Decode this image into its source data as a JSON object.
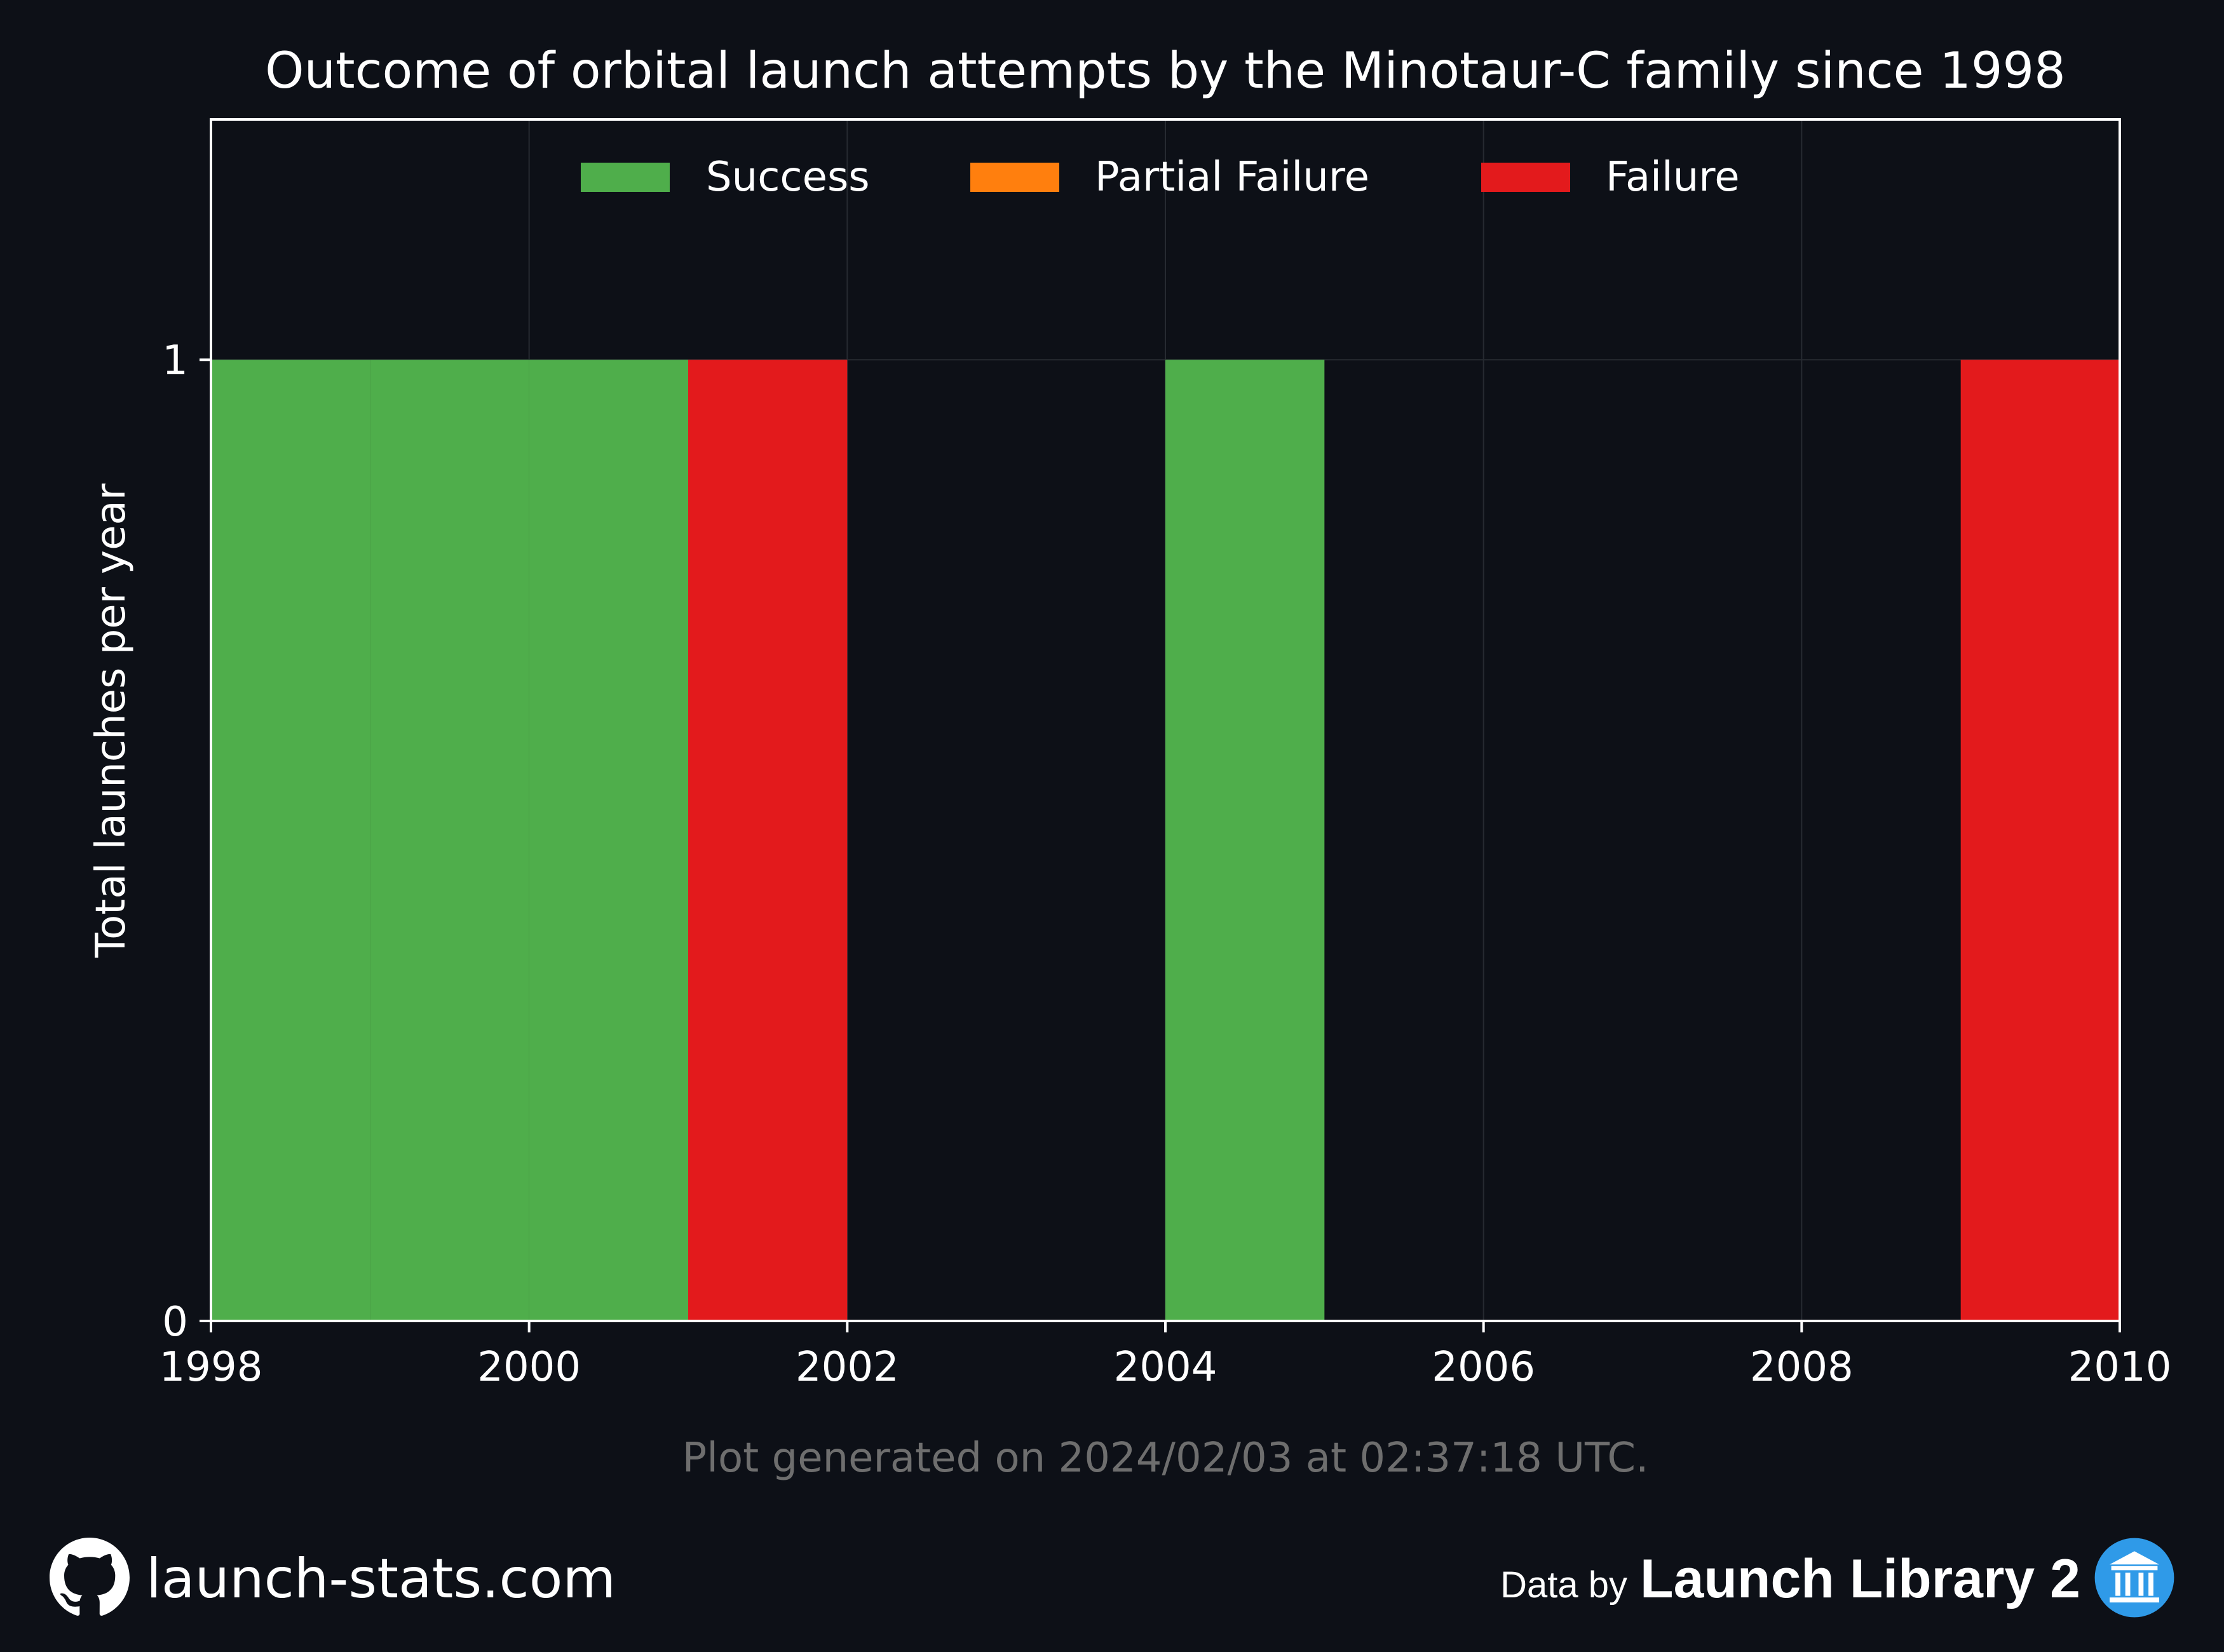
{
  "chart_data": {
    "type": "bar",
    "title": "Outcome of orbital launch attempts by the Minotaur-C family since 1998",
    "xlabel": "",
    "ylabel": "Total launches per year",
    "x": [
      1998,
      1999,
      2000,
      2001,
      2002,
      2003,
      2004,
      2005,
      2006,
      2007,
      2008,
      2009
    ],
    "series": [
      {
        "name": "Success",
        "color": "#4fae4b",
        "values": [
          1,
          1,
          1,
          0,
          0,
          0,
          1,
          0,
          0,
          0,
          0,
          0
        ]
      },
      {
        "name": "Partial Failure",
        "color": "#ff7f0e",
        "values": [
          0,
          0,
          0,
          0,
          0,
          0,
          0,
          0,
          0,
          0,
          0,
          0
        ]
      },
      {
        "name": "Failure",
        "color": "#e31a1c",
        "values": [
          0,
          0,
          0,
          1,
          0,
          0,
          0,
          0,
          0,
          0,
          0,
          1
        ]
      }
    ],
    "stacked": true,
    "xlim": [
      1998,
      2010
    ],
    "ylim": [
      0,
      1.25
    ],
    "xticks": [
      1998,
      2000,
      2002,
      2004,
      2006,
      2008,
      2010
    ],
    "yticks": [
      0,
      1
    ],
    "grid": true,
    "legend_position": "top-center"
  },
  "footer": {
    "generated": "Plot generated on 2024/02/03 at 02:37:18 UTC.",
    "site": "launch-stats.com",
    "data_by": "Data by",
    "brand": "Launch Library 2",
    "left_icon": "github-icon",
    "right_icon": "launch-library-icon"
  },
  "colors": {
    "background": "#0d1017",
    "text": "#ffffff",
    "muted_text": "#6e6e6e",
    "grid": "#262a31",
    "success": "#4fae4b",
    "partial_failure": "#ff7f0e",
    "failure": "#e31a1c",
    "brand_icon": "#2f9ae8"
  }
}
